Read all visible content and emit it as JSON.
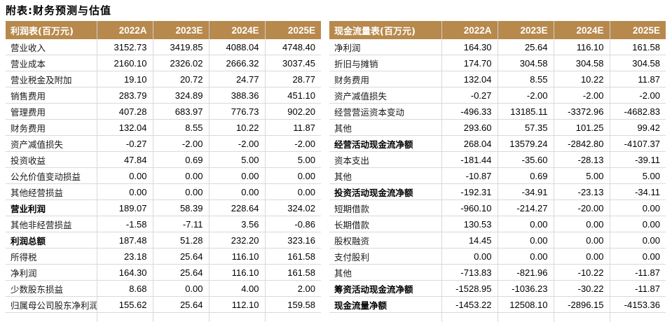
{
  "page_title": "附表:财务预测与估值",
  "colors": {
    "header_bg": "#B7894C",
    "header_text": "#FFFFFF",
    "grid_line": "#D9D9D9",
    "body_text": "#000000"
  },
  "tables": [
    {
      "name": "income-statement",
      "title": "利润表(百万元)",
      "columns": [
        "2022A",
        "2023E",
        "2024E",
        "2025E"
      ],
      "rows": [
        {
          "label": "营业收入",
          "bold": false,
          "values": [
            "3152.73",
            "3419.85",
            "4088.04",
            "4748.40"
          ]
        },
        {
          "label": "营业成本",
          "bold": false,
          "values": [
            "2160.10",
            "2326.02",
            "2666.32",
            "3037.45"
          ]
        },
        {
          "label": "营业税金及附加",
          "bold": false,
          "values": [
            "19.10",
            "20.72",
            "24.77",
            "28.77"
          ]
        },
        {
          "label": "销售费用",
          "bold": false,
          "values": [
            "283.79",
            "324.89",
            "388.36",
            "451.10"
          ]
        },
        {
          "label": "管理费用",
          "bold": false,
          "values": [
            "407.28",
            "683.97",
            "776.73",
            "902.20"
          ]
        },
        {
          "label": "财务费用",
          "bold": false,
          "values": [
            "132.04",
            "8.55",
            "10.22",
            "11.87"
          ]
        },
        {
          "label": "资产减值损失",
          "bold": false,
          "values": [
            "-0.27",
            "-2.00",
            "-2.00",
            "-2.00"
          ]
        },
        {
          "label": "投资收益",
          "bold": false,
          "values": [
            "47.84",
            "0.69",
            "5.00",
            "5.00"
          ]
        },
        {
          "label": "公允价值变动损益",
          "bold": false,
          "values": [
            "0.00",
            "0.00",
            "0.00",
            "0.00"
          ]
        },
        {
          "label": "其他经营损益",
          "bold": false,
          "values": [
            "0.00",
            "0.00",
            "0.00",
            "0.00"
          ]
        },
        {
          "label": "营业利润",
          "bold": true,
          "values": [
            "189.07",
            "58.39",
            "228.64",
            "324.02"
          ]
        },
        {
          "label": "其他非经营损益",
          "bold": false,
          "values": [
            "-1.58",
            "-7.11",
            "3.56",
            "-0.86"
          ]
        },
        {
          "label": "利润总额",
          "bold": true,
          "values": [
            "187.48",
            "51.28",
            "232.20",
            "323.16"
          ]
        },
        {
          "label": "所得税",
          "bold": false,
          "values": [
            "23.18",
            "25.64",
            "116.10",
            "161.58"
          ]
        },
        {
          "label": "净利润",
          "bold": false,
          "values": [
            "164.30",
            "25.64",
            "116.10",
            "161.58"
          ]
        },
        {
          "label": "少数股东损益",
          "bold": false,
          "values": [
            "8.68",
            "0.00",
            "4.00",
            "2.00"
          ]
        },
        {
          "label": "归属母公司股东净利润",
          "bold": false,
          "values": [
            "155.62",
            "25.64",
            "112.10",
            "159.58"
          ]
        }
      ]
    },
    {
      "name": "cash-flow-statement",
      "title": "现金流量表(百万元)",
      "columns": [
        "2022A",
        "2023E",
        "2024E",
        "2025E"
      ],
      "rows": [
        {
          "label": "净利润",
          "bold": false,
          "values": [
            "164.30",
            "25.64",
            "116.10",
            "161.58"
          ]
        },
        {
          "label": "折旧与摊销",
          "bold": false,
          "values": [
            "174.70",
            "304.58",
            "304.58",
            "304.58"
          ]
        },
        {
          "label": "财务费用",
          "bold": false,
          "values": [
            "132.04",
            "8.55",
            "10.22",
            "11.87"
          ]
        },
        {
          "label": "资产减值损失",
          "bold": false,
          "values": [
            "-0.27",
            "-2.00",
            "-2.00",
            "-2.00"
          ]
        },
        {
          "label": "经营营运资本变动",
          "bold": false,
          "values": [
            "-496.33",
            "13185.11",
            "-3372.96",
            "-4682.83"
          ]
        },
        {
          "label": "其他",
          "bold": false,
          "values": [
            "293.60",
            "57.35",
            "101.25",
            "99.42"
          ]
        },
        {
          "label": "经营活动现金流净额",
          "bold": true,
          "values": [
            "268.04",
            "13579.24",
            "-2842.80",
            "-4107.37"
          ]
        },
        {
          "label": "资本支出",
          "bold": false,
          "values": [
            "-181.44",
            "-35.60",
            "-28.13",
            "-39.11"
          ]
        },
        {
          "label": "其他",
          "bold": false,
          "values": [
            "-10.87",
            "0.69",
            "5.00",
            "5.00"
          ]
        },
        {
          "label": "投资活动现金流净额",
          "bold": true,
          "values": [
            "-192.31",
            "-34.91",
            "-23.13",
            "-34.11"
          ]
        },
        {
          "label": "短期借款",
          "bold": false,
          "values": [
            "-960.10",
            "-214.27",
            "-20.00",
            "0.00"
          ]
        },
        {
          "label": "长期借款",
          "bold": false,
          "values": [
            "130.53",
            "0.00",
            "0.00",
            "0.00"
          ]
        },
        {
          "label": "股权融资",
          "bold": false,
          "values": [
            "14.45",
            "0.00",
            "0.00",
            "0.00"
          ]
        },
        {
          "label": "支付股利",
          "bold": false,
          "values": [
            "0.00",
            "0.00",
            "0.00",
            "0.00"
          ]
        },
        {
          "label": "其他",
          "bold": false,
          "values": [
            "-713.83",
            "-821.96",
            "-10.22",
            "-11.87"
          ]
        },
        {
          "label": "筹资活动现金流净额",
          "bold": true,
          "values": [
            "-1528.95",
            "-1036.23",
            "-30.22",
            "-11.87"
          ]
        },
        {
          "label": "现金流量净额",
          "bold": true,
          "values": [
            "-1453.22",
            "12508.10",
            "-2896.15",
            "-4153.36"
          ]
        }
      ]
    }
  ]
}
